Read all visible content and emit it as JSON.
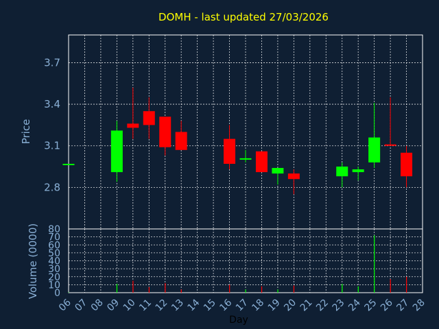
{
  "title": "DOMH - last updated 27/03/2026",
  "colors": {
    "background": "#0f1f33",
    "title": "#ffff00",
    "axis_text": "#8ab0d6",
    "grid": "#ffffff",
    "frame": "#ffffff",
    "up": "#00ff00",
    "down": "#ff0000"
  },
  "chart_data": [
    {
      "type": "candlestick",
      "ylabel": "Price",
      "ylim": [
        2.5,
        3.9
      ],
      "yticks": [
        "2.8",
        "3.1",
        "3.4",
        "3.7"
      ],
      "grid": true,
      "x_categories": [
        "06",
        "07",
        "08",
        "09",
        "10",
        "11",
        "12",
        "13",
        "14",
        "15",
        "16",
        "17",
        "18",
        "19",
        "20",
        "21",
        "22",
        "23",
        "24",
        "25",
        "26",
        "27",
        "28"
      ],
      "candles": [
        {
          "day": "06",
          "open": 2.97,
          "high": 2.97,
          "low": 2.97,
          "close": 2.97,
          "direction": "up"
        },
        {
          "day": "09",
          "open": 2.91,
          "high": 3.28,
          "low": 2.84,
          "close": 3.21,
          "direction": "up"
        },
        {
          "day": "10",
          "open": 3.26,
          "high": 3.52,
          "low": 3.15,
          "close": 3.23,
          "direction": "down"
        },
        {
          "day": "11",
          "open": 3.35,
          "high": 3.45,
          "low": 3.15,
          "close": 3.25,
          "direction": "down"
        },
        {
          "day": "12",
          "open": 3.31,
          "high": 3.31,
          "low": 3.03,
          "close": 3.09,
          "direction": "down"
        },
        {
          "day": "13",
          "open": 3.2,
          "high": 3.28,
          "low": 3.07,
          "close": 3.07,
          "direction": "down"
        },
        {
          "day": "16",
          "open": 3.15,
          "high": 3.25,
          "low": 2.93,
          "close": 2.97,
          "direction": "down"
        },
        {
          "day": "17",
          "open": 3.0,
          "high": 3.07,
          "low": 2.98,
          "close": 3.01,
          "direction": "up"
        },
        {
          "day": "18",
          "open": 3.06,
          "high": 3.06,
          "low": 2.91,
          "close": 2.91,
          "direction": "down"
        },
        {
          "day": "19",
          "open": 2.9,
          "high": 2.94,
          "low": 2.82,
          "close": 2.94,
          "direction": "up"
        },
        {
          "day": "20",
          "open": 2.9,
          "high": 2.93,
          "low": 2.75,
          "close": 2.86,
          "direction": "down"
        },
        {
          "day": "23",
          "open": 2.88,
          "high": 2.98,
          "low": 2.8,
          "close": 2.95,
          "direction": "up"
        },
        {
          "day": "24",
          "open": 2.91,
          "high": 2.95,
          "low": 2.85,
          "close": 2.93,
          "direction": "up"
        },
        {
          "day": "25",
          "open": 2.98,
          "high": 3.41,
          "low": 2.94,
          "close": 3.16,
          "direction": "up"
        },
        {
          "day": "26",
          "open": 3.11,
          "high": 3.45,
          "low": 3.1,
          "close": 3.1,
          "direction": "down"
        },
        {
          "day": "27",
          "open": 3.05,
          "high": 3.1,
          "low": 2.8,
          "close": 2.88,
          "direction": "down"
        }
      ]
    },
    {
      "type": "bar",
      "ylabel": "Volume (0000)",
      "xlabel": "Day",
      "ylim": [
        0,
        80
      ],
      "yticks": [
        "0",
        "10",
        "20",
        "30",
        "40",
        "50",
        "60",
        "70",
        "80"
      ],
      "grid": true,
      "categories": [
        "06",
        "07",
        "08",
        "09",
        "10",
        "11",
        "12",
        "13",
        "14",
        "15",
        "16",
        "17",
        "18",
        "19",
        "20",
        "21",
        "22",
        "23",
        "24",
        "25",
        "26",
        "27",
        "28"
      ],
      "bars": [
        {
          "day": "06",
          "value": 0.5,
          "direction": "up"
        },
        {
          "day": "09",
          "value": 11,
          "direction": "up"
        },
        {
          "day": "10",
          "value": 15,
          "direction": "down"
        },
        {
          "day": "11",
          "value": 7,
          "direction": "down"
        },
        {
          "day": "12",
          "value": 12,
          "direction": "down"
        },
        {
          "day": "13",
          "value": 4,
          "direction": "down"
        },
        {
          "day": "16",
          "value": 10,
          "direction": "down"
        },
        {
          "day": "17",
          "value": 4,
          "direction": "up"
        },
        {
          "day": "18",
          "value": 8,
          "direction": "down"
        },
        {
          "day": "19",
          "value": 4,
          "direction": "up"
        },
        {
          "day": "20",
          "value": 9,
          "direction": "down"
        },
        {
          "day": "23",
          "value": 11,
          "direction": "up"
        },
        {
          "day": "24",
          "value": 8,
          "direction": "up"
        },
        {
          "day": "25",
          "value": 72,
          "direction": "up"
        },
        {
          "day": "26",
          "value": 17,
          "direction": "down"
        },
        {
          "day": "27",
          "value": 20,
          "direction": "down"
        }
      ]
    }
  ]
}
